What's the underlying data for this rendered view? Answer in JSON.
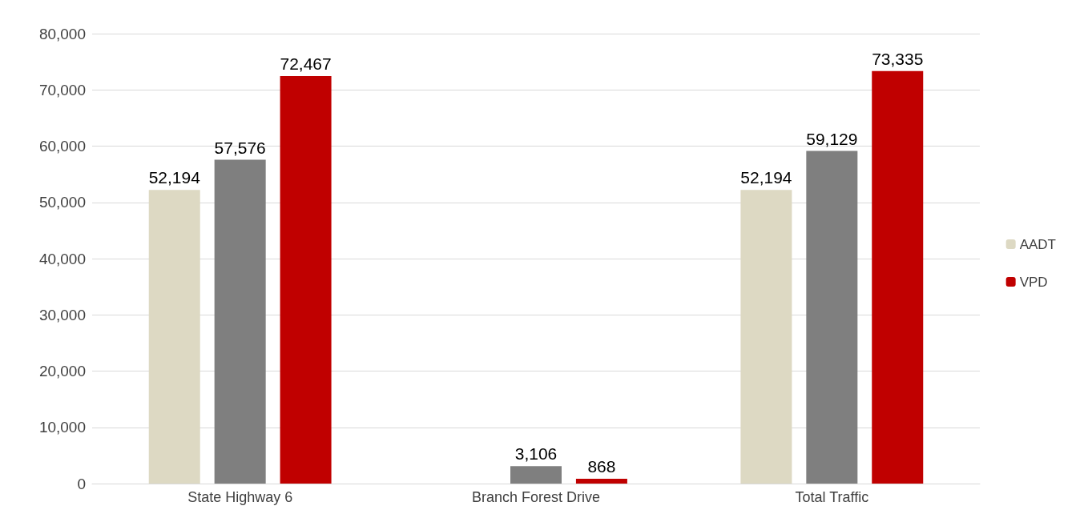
{
  "chart_data": {
    "type": "bar",
    "categories": [
      "State Highway 6",
      "Branch Forest Drive",
      "Total Traffic"
    ],
    "series": [
      {
        "name": "AADT",
        "color": "#ddd9c3",
        "values": [
          52194,
          null,
          52194
        ],
        "value_labels": [
          "52,194",
          null,
          "52,194"
        ]
      },
      {
        "color": "#7f7f7f",
        "values": [
          57576,
          3106,
          59129
        ],
        "value_labels": [
          "57,576",
          "3,106",
          "59,129"
        ]
      },
      {
        "name": "VPD",
        "color": "#c00000",
        "values": [
          72467,
          868,
          73335
        ],
        "value_labels": [
          "72,467",
          "868",
          "73,335"
        ]
      }
    ],
    "ylim": [
      0,
      80000
    ],
    "yticks": [
      0,
      {
        "value": 10000,
        "label": "10,000"
      },
      {
        "value": 20000,
        "label": "20,000"
      },
      {
        "value": 30000,
        "label": "30,000"
      },
      {
        "value": 40000,
        "label": "40,000"
      },
      {
        "value": 50000,
        "label": "50,000"
      },
      {
        "value": 60000,
        "label": "60,000"
      },
      {
        "value": 70000,
        "label": "70,000"
      },
      {
        "value": 80000,
        "label": "80,000"
      }
    ],
    "grid": "y",
    "legend": "right"
  }
}
